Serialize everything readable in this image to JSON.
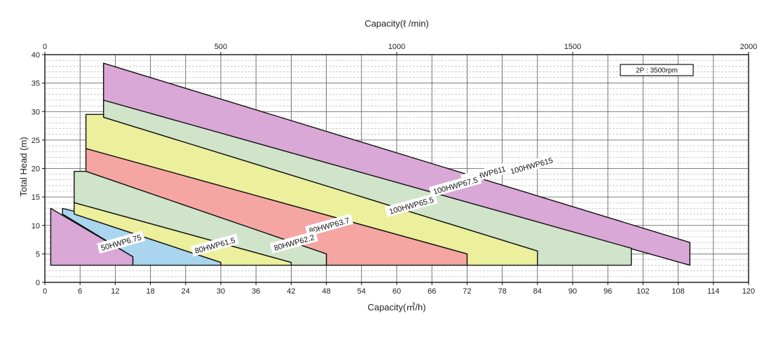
{
  "chart_data": {
    "type": "area",
    "title": "",
    "xlabel": "Capacity(㎥/h)",
    "ylabel": "Total Head (m)",
    "top_xlabel": "Capacity(ℓ /min)",
    "xlim": [
      0,
      120
    ],
    "ylim": [
      0,
      40
    ],
    "top_xlim": [
      0,
      2000
    ],
    "x_ticks": [
      0,
      6,
      12,
      18,
      24,
      30,
      36,
      42,
      48,
      54,
      60,
      66,
      72,
      78,
      84,
      90,
      96,
      102,
      108,
      114,
      120
    ],
    "y_ticks": [
      0,
      5,
      10,
      15,
      20,
      25,
      30,
      35,
      40
    ],
    "top_x_ticks": [
      0,
      500,
      1000,
      1500,
      2000
    ],
    "grid": true,
    "legend": {
      "text": "2P : 3500rpm",
      "position": "top-right"
    },
    "series": [
      {
        "name": "100HWP615",
        "color": "#d9a8d6",
        "polygon": [
          [
            10,
            38.5
          ],
          [
            10,
            32
          ],
          [
            110,
            3
          ],
          [
            110,
            7
          ]
        ]
      },
      {
        "name": "100HWP611",
        "color": "#cfe4c9",
        "polygon": [
          [
            10,
            32
          ],
          [
            10,
            29
          ],
          [
            84,
            5.5
          ],
          [
            84,
            3
          ],
          [
            100,
            3
          ],
          [
            100,
            6
          ]
        ]
      },
      {
        "name": "100HWP67.5",
        "color": "#ecef9c",
        "polygon": [
          [
            7,
            29.5
          ],
          [
            7,
            23.5
          ],
          [
            72,
            5
          ],
          [
            72,
            3
          ],
          [
            84,
            3
          ],
          [
            84,
            5.5
          ],
          [
            10,
            29
          ],
          [
            10,
            29.5
          ]
        ]
      },
      {
        "name": "100HWP65.5",
        "color": "#f5a6a3",
        "polygon": [
          [
            7,
            23.5
          ],
          [
            7,
            19.5
          ],
          [
            48,
            5
          ],
          [
            48,
            3
          ],
          [
            72,
            3
          ],
          [
            72,
            5
          ]
        ]
      },
      {
        "name": "80HWP63.7",
        "color": "#cfe4c9",
        "polygon": [
          [
            5,
            19.5
          ],
          [
            5,
            14
          ],
          [
            42,
            3.5
          ],
          [
            42,
            3
          ],
          [
            48,
            3
          ],
          [
            48,
            5
          ],
          [
            7,
            19.5
          ]
        ]
      },
      {
        "name": "80HWP62.2",
        "color": "#ecef9c",
        "polygon": [
          [
            5,
            14
          ],
          [
            5,
            12
          ],
          [
            30,
            3.5
          ],
          [
            30,
            3
          ],
          [
            42,
            3
          ],
          [
            42,
            3.5
          ]
        ]
      },
      {
        "name": "80HWP61.5",
        "color": "#a9d5ee",
        "polygon": [
          [
            3,
            13
          ],
          [
            3,
            12
          ],
          [
            15,
            4.5
          ],
          [
            15,
            3
          ],
          [
            30,
            3
          ],
          [
            30,
            3.5
          ],
          [
            5,
            12
          ],
          [
            5,
            12.5
          ]
        ]
      },
      {
        "name": "50HWP6.75",
        "color": "#d9a8d6",
        "polygon": [
          [
            1,
            13
          ],
          [
            1,
            3
          ],
          [
            15,
            3
          ],
          [
            15,
            4.5
          ]
        ]
      }
    ],
    "region_labels": [
      {
        "text": "100HWP615",
        "x": 83,
        "y": 20.5
      },
      {
        "text": "100HWP611",
        "x": 75,
        "y": 19
      },
      {
        "text": "100HWP67.5",
        "x": 70,
        "y": 17
      },
      {
        "text": "100HWP65.5",
        "x": 62.5,
        "y": 13.5
      },
      {
        "text": "80HWP63.7",
        "x": 48.5,
        "y": 10
      },
      {
        "text": "80HWP62.2",
        "x": 42.5,
        "y": 7
      },
      {
        "text": "80HWP61.5",
        "x": 29,
        "y": 6.5
      },
      {
        "text": "50HWP6.75",
        "x": 13,
        "y": 7
      }
    ]
  }
}
